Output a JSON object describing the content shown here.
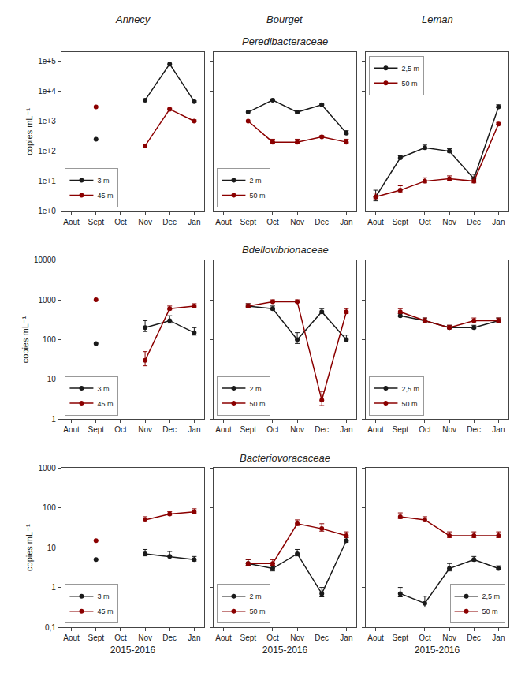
{
  "col_titles": [
    "Annecy",
    "Bourget",
    "Leman"
  ],
  "row_titles": [
    "Peredibacteraceae",
    "Bdellovibrionaceae",
    "Bacteriovoracaceae"
  ],
  "chart_data": [
    {
      "type": "line",
      "marker": "circle",
      "log": "y",
      "grid": false,
      "legend": "lower left",
      "ylabel": "copies mL⁻¹",
      "categories": [
        "Aout",
        "Sept",
        "Oct",
        "Nov",
        "Dec",
        "Jan"
      ],
      "ylim": [
        1.0,
        200000.0
      ],
      "yticks": [
        {
          "value": 1,
          "label": "1e+0"
        },
        {
          "value": 10,
          "label": "1e+1"
        },
        {
          "value": 100,
          "label": "1e+2"
        },
        {
          "value": 1000,
          "label": "1e+3"
        },
        {
          "value": 10000,
          "label": "1e+4"
        },
        {
          "value": 100000,
          "label": "1e+5"
        }
      ],
      "series": [
        {
          "name": "3 m",
          "color": "#1a1a1a",
          "values": [
            null,
            250,
            null,
            5000,
            80000,
            4500
          ],
          "yerr_plus": [
            null,
            null,
            null,
            null,
            null,
            300
          ],
          "yerr_minus": [
            null,
            null,
            null,
            null,
            null,
            120
          ]
        },
        {
          "name": "45 m",
          "color": "#8b0000",
          "values": [
            null,
            3000,
            null,
            150,
            2500,
            1000
          ],
          "yerr_plus": [
            null,
            null,
            null,
            null,
            200,
            100
          ],
          "yerr_minus": [
            null,
            null,
            null,
            null,
            80,
            40
          ]
        }
      ]
    },
    {
      "type": "line",
      "marker": "circle",
      "log": "y",
      "grid": false,
      "legend": "lower left",
      "tick_labels": "x",
      "categories": [
        "Aout",
        "Sept",
        "Oct",
        "Nov",
        "Dec",
        "Jan"
      ],
      "ylim": [
        1.0,
        200000.0
      ],
      "yticks": [
        1,
        10,
        100,
        1000,
        10000,
        100000
      ],
      "series": [
        {
          "name": "2 m",
          "color": "#1a1a1a",
          "values": [
            null,
            2000,
            5000,
            2000,
            3500,
            400
          ],
          "yerr_plus": [
            null,
            null,
            500,
            300,
            200,
            80
          ],
          "yerr_minus": [
            null,
            null,
            200,
            120,
            80,
            32
          ]
        },
        {
          "name": "50 m",
          "color": "#8b0000",
          "values": [
            null,
            1000,
            200,
            200,
            300,
            200
          ],
          "yerr_plus": [
            null,
            null,
            50,
            50,
            30,
            50
          ],
          "yerr_minus": [
            null,
            null,
            20,
            20,
            12,
            20
          ]
        }
      ]
    },
    {
      "type": "line",
      "marker": "circle",
      "log": "y",
      "grid": false,
      "legend": "upper left",
      "tick_labels": "x",
      "categories": [
        "Aout",
        "Sept",
        "Oct",
        "Nov",
        "Dec",
        "Jan"
      ],
      "ylim": [
        1.0,
        200000.0
      ],
      "yticks": [
        1,
        10,
        100,
        1000,
        10000,
        100000
      ],
      "series": [
        {
          "name": "2,5 m",
          "color": "#1a1a1a",
          "values": [
            3,
            60,
            130,
            100,
            12,
            3000
          ],
          "yerr_plus": [
            2,
            10,
            30,
            20,
            5,
            500
          ],
          "yerr_minus": [
            0.8,
            4,
            12,
            8,
            2,
            200
          ]
        },
        {
          "name": "50 m",
          "color": "#8b0000",
          "values": [
            3,
            5,
            10,
            12,
            10,
            800
          ],
          "yerr_plus": [
            1,
            2,
            3,
            3,
            3,
            100
          ],
          "yerr_minus": [
            0.4,
            0.8,
            1.2,
            1.2,
            1.2,
            40
          ]
        }
      ]
    },
    {
      "type": "line",
      "marker": "circle",
      "log": "y",
      "grid": false,
      "legend": "lower left",
      "ylabel": "copies mL⁻¹",
      "categories": [
        "Aout",
        "Sept",
        "Oct",
        "Nov",
        "Dec",
        "Jan"
      ],
      "ylim": [
        1.0,
        10000.0
      ],
      "yticks": [
        1,
        10,
        100,
        1000,
        10000
      ],
      "series": [
        {
          "name": "3 m",
          "color": "#1a1a1a",
          "values": [
            null,
            80,
            null,
            200,
            300,
            150
          ],
          "yerr_plus": [
            null,
            null,
            null,
            100,
            100,
            50
          ],
          "yerr_minus": [
            null,
            null,
            null,
            40,
            40,
            20
          ]
        },
        {
          "name": "45 m",
          "color": "#8b0000",
          "values": [
            null,
            1000,
            null,
            30,
            600,
            700
          ],
          "yerr_plus": [
            null,
            null,
            null,
            20,
            100,
            100
          ],
          "yerr_minus": [
            null,
            null,
            null,
            8,
            40,
            40
          ]
        }
      ]
    },
    {
      "type": "line",
      "marker": "circle",
      "log": "y",
      "grid": false,
      "legend": "lower left",
      "tick_labels": "x",
      "categories": [
        "Aout",
        "Sept",
        "Oct",
        "Nov",
        "Dec",
        "Jan"
      ],
      "ylim": [
        1.0,
        10000.0
      ],
      "yticks": [
        1,
        10,
        100,
        1000,
        10000
      ],
      "series": [
        {
          "name": "2 m",
          "color": "#1a1a1a",
          "values": [
            null,
            700,
            600,
            100,
            500,
            100
          ],
          "yerr_plus": [
            null,
            100,
            100,
            50,
            100,
            30
          ],
          "yerr_minus": [
            null,
            40,
            40,
            20,
            40,
            12
          ]
        },
        {
          "name": "50 m",
          "color": "#8b0000",
          "values": [
            null,
            700,
            900,
            900,
            3,
            500
          ],
          "yerr_plus": [
            null,
            100,
            100,
            100,
            2,
            100
          ],
          "yerr_minus": [
            null,
            40,
            40,
            40,
            0.8,
            40
          ]
        }
      ]
    },
    {
      "type": "line",
      "marker": "circle",
      "log": "y",
      "grid": false,
      "legend": "lower left",
      "tick_labels": "x",
      "categories": [
        "Aout",
        "Sept",
        "Oct",
        "Nov",
        "Dec",
        "Jan"
      ],
      "ylim": [
        1.0,
        10000.0
      ],
      "yticks": [
        1,
        10,
        100,
        1000,
        10000
      ],
      "series": [
        {
          "name": "2,5 m",
          "color": "#1a1a1a",
          "values": [
            null,
            400,
            300,
            200,
            200,
            300
          ],
          "yerr_plus": [
            null,
            50,
            50,
            30,
            30,
            50
          ],
          "yerr_minus": [
            null,
            20,
            20,
            12,
            12,
            20
          ]
        },
        {
          "name": "50 m",
          "color": "#8b0000",
          "values": [
            null,
            500,
            300,
            200,
            300,
            300
          ],
          "yerr_plus": [
            null,
            100,
            50,
            30,
            50,
            50
          ],
          "yerr_minus": [
            null,
            40,
            20,
            12,
            20,
            20
          ]
        }
      ]
    },
    {
      "type": "line",
      "marker": "circle",
      "log": "y",
      "grid": false,
      "legend": "lower left",
      "ylabel": "copies mL⁻¹",
      "xlabel": "2015-2016",
      "categories": [
        "Aout",
        "Sept",
        "Oct",
        "Nov",
        "Dec",
        "Jan"
      ],
      "ylim": [
        0.1,
        1000.0
      ],
      "yticks": [
        {
          "value": 0.1,
          "label": "0,1"
        },
        1,
        10,
        100,
        1000
      ],
      "series": [
        {
          "name": "3 m",
          "color": "#1a1a1a",
          "values": [
            null,
            5,
            null,
            7,
            6,
            5
          ],
          "yerr_plus": [
            null,
            null,
            null,
            2,
            2,
            1
          ],
          "yerr_minus": [
            null,
            null,
            null,
            0.8,
            0.8,
            0.4
          ]
        },
        {
          "name": "45 m",
          "color": "#8b0000",
          "values": [
            null,
            15,
            null,
            50,
            70,
            80
          ],
          "yerr_plus": [
            null,
            null,
            null,
            10,
            10,
            15
          ],
          "yerr_minus": [
            null,
            null,
            null,
            4,
            4,
            6
          ]
        }
      ]
    },
    {
      "type": "line",
      "marker": "circle",
      "log": "y",
      "grid": false,
      "legend": "lower left",
      "tick_labels": "x",
      "xlabel": "2015-2016",
      "categories": [
        "Aout",
        "Sept",
        "Oct",
        "Nov",
        "Dec",
        "Jan"
      ],
      "ylim": [
        0.1,
        1000.0
      ],
      "yticks": [
        0.1,
        1,
        10,
        100,
        1000
      ],
      "series": [
        {
          "name": "2 m",
          "color": "#1a1a1a",
          "values": [
            null,
            4,
            3,
            7,
            0.7,
            15
          ],
          "yerr_plus": [
            null,
            1,
            1,
            2,
            0.3,
            3
          ],
          "yerr_minus": [
            null,
            0.4,
            0.4,
            0.8,
            0.12,
            1.2
          ]
        },
        {
          "name": "50 m",
          "color": "#8b0000",
          "values": [
            null,
            4,
            4,
            40,
            30,
            20
          ],
          "yerr_plus": [
            null,
            1,
            1,
            10,
            10,
            5
          ],
          "yerr_minus": [
            null,
            0.4,
            0.4,
            4,
            4,
            2
          ]
        }
      ]
    },
    {
      "type": "line",
      "marker": "circle",
      "log": "y",
      "grid": false,
      "legend": "lower right",
      "tick_labels": "x",
      "xlabel": "2015-2016",
      "categories": [
        "Aout",
        "Sept",
        "Oct",
        "Nov",
        "Dec",
        "Jan"
      ],
      "ylim": [
        0.1,
        1000.0
      ],
      "yticks": [
        0.1,
        1,
        10,
        100,
        1000
      ],
      "series": [
        {
          "name": "2,5 m",
          "color": "#1a1a1a",
          "values": [
            null,
            0.7,
            0.4,
            3,
            5,
            3
          ],
          "yerr_plus": [
            null,
            0.3,
            0.2,
            1,
            1,
            0.5
          ],
          "yerr_minus": [
            null,
            0.12,
            0.08,
            0.4,
            0.4,
            0.2
          ]
        },
        {
          "name": "50 m",
          "color": "#8b0000",
          "values": [
            null,
            60,
            50,
            20,
            20,
            20
          ],
          "yerr_plus": [
            null,
            15,
            10,
            5,
            5,
            5
          ],
          "yerr_minus": [
            null,
            6,
            4,
            2,
            2,
            2
          ]
        }
      ]
    }
  ]
}
